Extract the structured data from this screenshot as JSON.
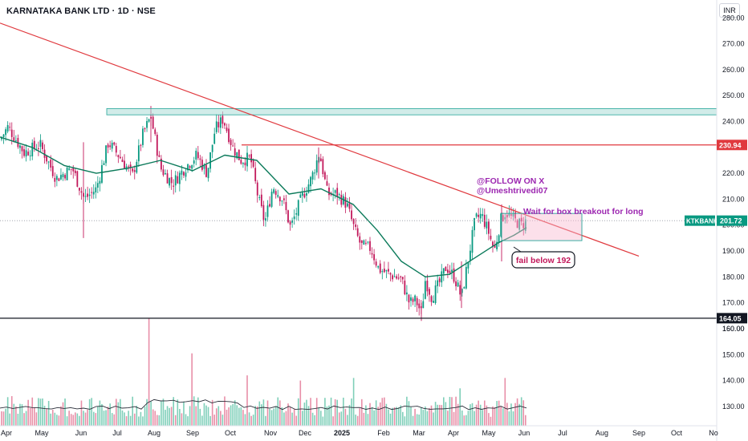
{
  "title": "KARNATAKA BANK LTD · 1D · NSE",
  "currency": "INR",
  "chart_data": {
    "type": "candlestick",
    "price_axis": {
      "ticks": [
        280,
        270,
        260,
        250,
        240,
        230,
        220,
        210,
        200,
        190,
        180,
        170,
        160
      ],
      "range": [
        160,
        284
      ]
    },
    "volume_axis": {
      "ticks": [
        160,
        150,
        140,
        130
      ]
    },
    "x_ticks": [
      "Apr",
      "May",
      "Jun",
      "Jul",
      "Aug",
      "Sep",
      "Oct",
      "Nov",
      "Dec",
      "2025",
      "Feb",
      "Mar",
      "Apr",
      "May",
      "Jun",
      "Jul",
      "Aug",
      "Sep",
      "Oct",
      "No"
    ],
    "price_keypoints": [
      {
        "x": 0,
        "y": 233
      },
      {
        "x": 10,
        "y": 238
      },
      {
        "x": 30,
        "y": 228
      },
      {
        "x": 50,
        "y": 231
      },
      {
        "x": 70,
        "y": 218
      },
      {
        "x": 90,
        "y": 222
      },
      {
        "x": 105,
        "y": 210
      },
      {
        "x": 120,
        "y": 214
      },
      {
        "x": 135,
        "y": 232
      },
      {
        "x": 150,
        "y": 226
      },
      {
        "x": 165,
        "y": 219
      },
      {
        "x": 178,
        "y": 235
      },
      {
        "x": 188,
        "y": 242
      },
      {
        "x": 200,
        "y": 222
      },
      {
        "x": 215,
        "y": 216
      },
      {
        "x": 230,
        "y": 222
      },
      {
        "x": 245,
        "y": 227
      },
      {
        "x": 258,
        "y": 220
      },
      {
        "x": 268,
        "y": 237
      },
      {
        "x": 278,
        "y": 241
      },
      {
        "x": 290,
        "y": 230
      },
      {
        "x": 300,
        "y": 225
      },
      {
        "x": 312,
        "y": 226
      },
      {
        "x": 322,
        "y": 210
      },
      {
        "x": 330,
        "y": 201
      },
      {
        "x": 340,
        "y": 215
      },
      {
        "x": 352,
        "y": 210
      },
      {
        "x": 362,
        "y": 199
      },
      {
        "x": 375,
        "y": 210
      },
      {
        "x": 388,
        "y": 218
      },
      {
        "x": 398,
        "y": 228
      },
      {
        "x": 408,
        "y": 212
      },
      {
        "x": 420,
        "y": 212
      },
      {
        "x": 432,
        "y": 208
      },
      {
        "x": 442,
        "y": 198
      },
      {
        "x": 450,
        "y": 192
      },
      {
        "x": 462,
        "y": 191
      },
      {
        "x": 472,
        "y": 183
      },
      {
        "x": 485,
        "y": 181
      },
      {
        "x": 500,
        "y": 179
      },
      {
        "x": 510,
        "y": 170
      },
      {
        "x": 518,
        "y": 171
      },
      {
        "x": 525,
        "y": 166
      },
      {
        "x": 530,
        "y": 179
      },
      {
        "x": 538,
        "y": 172
      },
      {
        "x": 548,
        "y": 178
      },
      {
        "x": 556,
        "y": 184
      },
      {
        "x": 566,
        "y": 180
      },
      {
        "x": 575,
        "y": 172
      },
      {
        "x": 583,
        "y": 186
      },
      {
        "x": 592,
        "y": 202
      },
      {
        "x": 600,
        "y": 204
      },
      {
        "x": 608,
        "y": 198
      },
      {
        "x": 616,
        "y": 190
      },
      {
        "x": 624,
        "y": 202
      },
      {
        "x": 630,
        "y": 205
      },
      {
        "x": 640,
        "y": 202
      },
      {
        "x": 650,
        "y": 200
      },
      {
        "x": 656,
        "y": 201.7
      }
    ],
    "moving_average": [
      {
        "x": 0,
        "y": 234
      },
      {
        "x": 40,
        "y": 230
      },
      {
        "x": 80,
        "y": 223
      },
      {
        "x": 120,
        "y": 220
      },
      {
        "x": 160,
        "y": 222
      },
      {
        "x": 200,
        "y": 225
      },
      {
        "x": 240,
        "y": 221
      },
      {
        "x": 280,
        "y": 227
      },
      {
        "x": 320,
        "y": 225
      },
      {
        "x": 360,
        "y": 212
      },
      {
        "x": 400,
        "y": 214
      },
      {
        "x": 440,
        "y": 208
      },
      {
        "x": 470,
        "y": 198
      },
      {
        "x": 500,
        "y": 186
      },
      {
        "x": 530,
        "y": 180
      },
      {
        "x": 560,
        "y": 181
      },
      {
        "x": 590,
        "y": 187
      },
      {
        "x": 620,
        "y": 193
      },
      {
        "x": 640,
        "y": 196
      },
      {
        "x": 656,
        "y": 199
      }
    ],
    "annotations": {
      "follow_line1": "@FOLLOW ON X",
      "follow_line2": "@Umeshtrivedi07",
      "box_note": "Wait for box breakout for long",
      "fail_note": "fail below 192",
      "symbol": "KTKBANK",
      "last_price": "201.72",
      "resistance_price": "230.94",
      "support_price": "164.05"
    },
    "levels": {
      "resistance": 230.94,
      "support": 164.05,
      "zone_top": 245,
      "zone_bottom": 243.5
    },
    "trendline": [
      {
        "x": 0,
        "y": 278
      },
      {
        "x": 796,
        "y": 188
      }
    ],
    "box": {
      "x0": 625,
      "x1": 725,
      "y_top": 204.5,
      "y_bottom": 194
    },
    "colors": {
      "up": "#089981",
      "down": "#c2185b",
      "ma": "#0b7a5a",
      "trend": "#e0393e",
      "purple": "#9c27b0",
      "last": "#089981"
    }
  }
}
